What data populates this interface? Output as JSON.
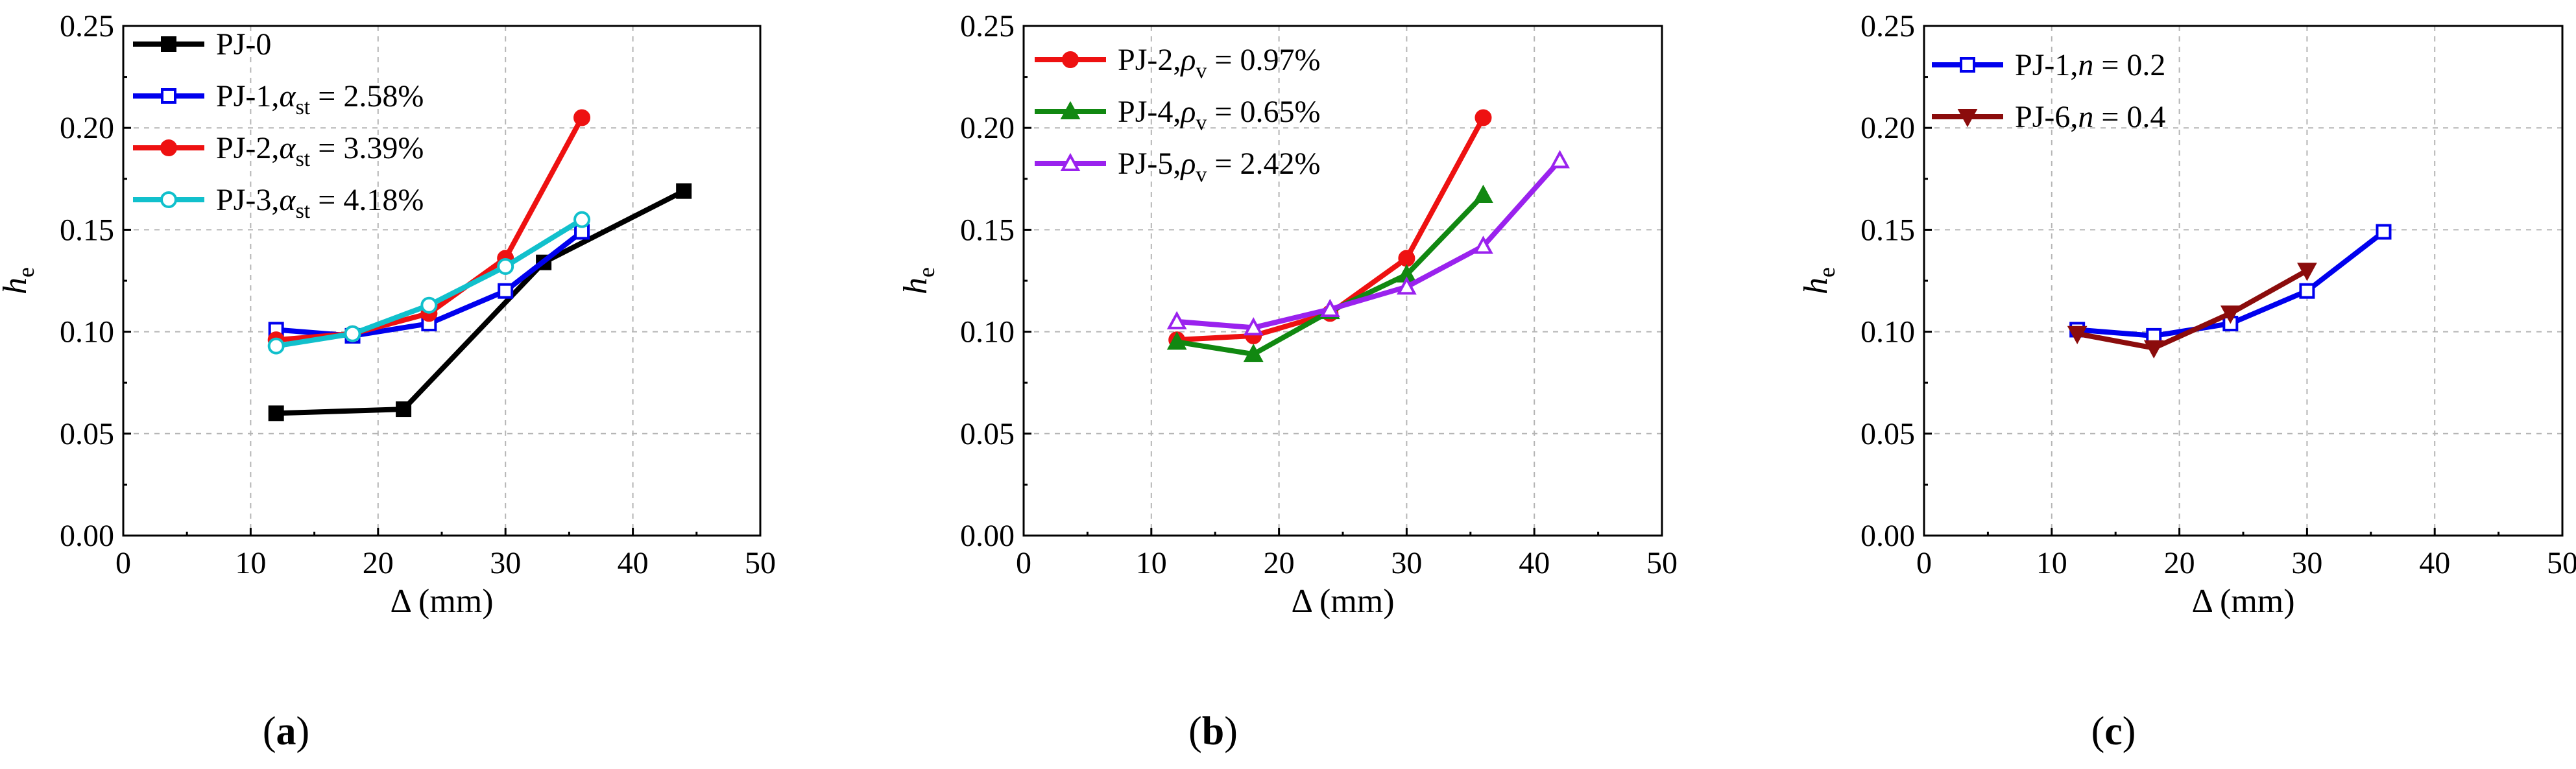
{
  "colors": {
    "black": "#000000",
    "blue": "#0000ee",
    "red": "#ee1111",
    "cyan": "#11c0cc",
    "green": "#118811",
    "purple": "#9a22ee",
    "darkred": "#8b0c0c"
  },
  "chart_data": [
    {
      "type": "line",
      "panel": "(a)",
      "panel_letter": "a",
      "xlabel": "Δ (mm)",
      "ylabel": "he",
      "xlim": [
        0,
        50
      ],
      "ylim": [
        0,
        0.25
      ],
      "xticks": [
        "0",
        "10",
        "20",
        "30",
        "40",
        "50"
      ],
      "yticks": [
        "0.00",
        "0.05",
        "0.10",
        "0.15",
        "0.20",
        "0.25"
      ],
      "grid": true,
      "legend_position": "top-left",
      "series": [
        {
          "name": "PJ-0",
          "label_main": "PJ-0",
          "label_sym": "",
          "label_sub": "",
          "label_val": "",
          "color_key": "black",
          "marker": "square-filled",
          "x": [
            12,
            22,
            33,
            44
          ],
          "y": [
            0.06,
            0.062,
            0.134,
            0.169
          ]
        },
        {
          "name": "PJ-1, αst = 2.58%",
          "label_main": "PJ-1,",
          "label_sym": "α",
          "label_sub": "st",
          "label_val": " = 2.58%",
          "color_key": "blue",
          "marker": "square-open",
          "x": [
            12,
            18,
            24,
            30,
            36
          ],
          "y": [
            0.101,
            0.098,
            0.104,
            0.12,
            0.149
          ]
        },
        {
          "name": "PJ-2, αst = 3.39%",
          "label_main": "PJ-2,",
          "label_sym": "α",
          "label_sub": "st",
          "label_val": " = 3.39%",
          "color_key": "red",
          "marker": "circle-filled",
          "x": [
            12,
            18,
            24,
            30,
            36
          ],
          "y": [
            0.096,
            0.099,
            0.109,
            0.136,
            0.205
          ]
        },
        {
          "name": "PJ-3, αst = 4.18%",
          "label_main": "PJ-3,",
          "label_sym": "α",
          "label_sub": "st",
          "label_val": " = 4.18%",
          "color_key": "cyan",
          "marker": "circle-open",
          "x": [
            12,
            18,
            24,
            30,
            36
          ],
          "y": [
            0.093,
            0.099,
            0.113,
            0.132,
            0.155
          ]
        }
      ]
    },
    {
      "type": "line",
      "panel": "(b)",
      "panel_letter": "b",
      "xlabel": "Δ (mm)",
      "ylabel": "he",
      "xlim": [
        0,
        50
      ],
      "ylim": [
        0,
        0.25
      ],
      "xticks": [
        "0",
        "10",
        "20",
        "30",
        "40",
        "50"
      ],
      "yticks": [
        "0.00",
        "0.05",
        "0.10",
        "0.15",
        "0.20",
        "0.25"
      ],
      "grid": true,
      "legend_position": "top-left",
      "series": [
        {
          "name": "PJ-2, ρv = 0.97%",
          "label_main": "PJ-2,",
          "label_sym": "ρ",
          "label_sub": "v",
          "label_val": " = 0.97%",
          "color_key": "red",
          "marker": "circle-filled",
          "x": [
            12,
            18,
            24,
            30,
            36
          ],
          "y": [
            0.096,
            0.098,
            0.109,
            0.136,
            0.205
          ]
        },
        {
          "name": "PJ-4, ρv = 0.65%",
          "label_main": "PJ-4,",
          "label_sym": "ρ",
          "label_sub": "v",
          "label_val": " = 0.65%",
          "color_key": "green",
          "marker": "triangle-up-filled",
          "x": [
            12,
            18,
            24,
            30,
            36
          ],
          "y": [
            0.095,
            0.089,
            0.11,
            0.128,
            0.167
          ]
        },
        {
          "name": "PJ-5, ρv = 2.42%",
          "label_main": "PJ-5,",
          "label_sym": "ρ",
          "label_sub": "v",
          "label_val": " = 2.42%",
          "color_key": "purple",
          "marker": "triangle-up-open",
          "x": [
            12,
            18,
            24,
            30,
            36,
            42
          ],
          "y": [
            0.105,
            0.102,
            0.111,
            0.122,
            0.142,
            0.184
          ]
        }
      ]
    },
    {
      "type": "line",
      "panel": "(c)",
      "panel_letter": "c",
      "xlabel": "Δ (mm)",
      "ylabel": "he",
      "xlim": [
        0,
        50
      ],
      "ylim": [
        0,
        0.25
      ],
      "xticks": [
        "0",
        "10",
        "20",
        "30",
        "40",
        "50"
      ],
      "yticks": [
        "0.00",
        "0.05",
        "0.10",
        "0.15",
        "0.20",
        "0.25"
      ],
      "grid": true,
      "legend_position": "top-left",
      "series": [
        {
          "name": "PJ-1, n = 0.2",
          "label_main": "PJ-1,",
          "label_sym": "n",
          "label_sub": "",
          "label_val": " = 0.2",
          "color_key": "blue",
          "marker": "square-open",
          "x": [
            12,
            18,
            24,
            30,
            36
          ],
          "y": [
            0.101,
            0.098,
            0.104,
            0.12,
            0.149
          ]
        },
        {
          "name": "PJ-6, n = 0.4",
          "label_main": "PJ-6,",
          "label_sym": "n",
          "label_sub": "",
          "label_val": " = 0.4",
          "color_key": "darkred",
          "marker": "triangle-down-filled",
          "x": [
            12,
            18,
            24,
            30
          ],
          "y": [
            0.099,
            0.092,
            0.109,
            0.13
          ]
        }
      ]
    }
  ]
}
